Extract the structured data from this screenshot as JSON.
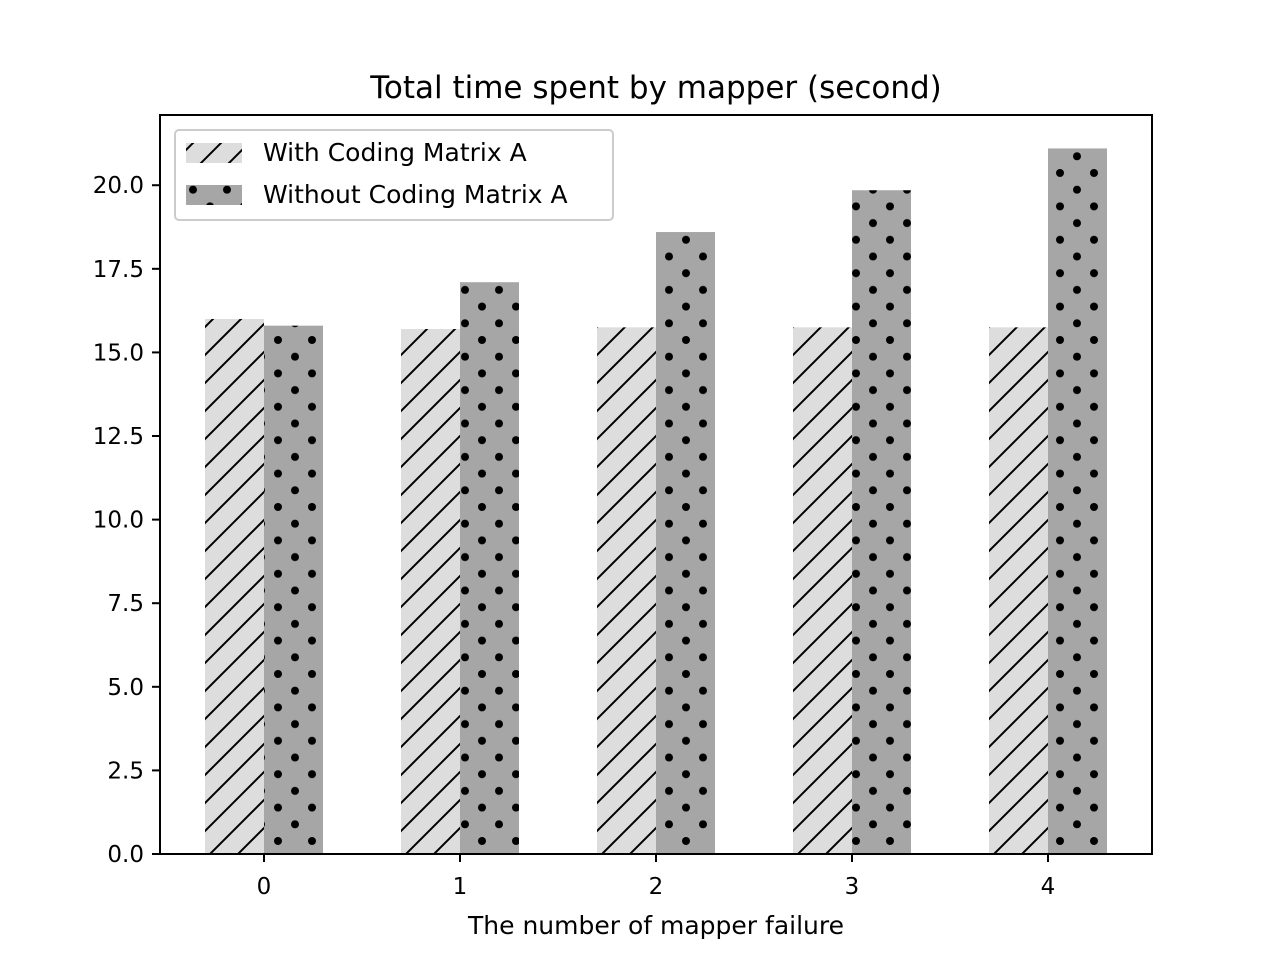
{
  "chart_data": {
    "type": "bar",
    "title": "Total time spent by mapper (second)",
    "xlabel": "The number of mapper failure",
    "ylabel": "",
    "categories": [
      "0",
      "1",
      "2",
      "3",
      "4"
    ],
    "ylim": [
      0,
      22.1
    ],
    "yticks": [
      "0.0",
      "2.5",
      "5.0",
      "7.5",
      "10.0",
      "12.5",
      "15.0",
      "17.5",
      "20.0"
    ],
    "legend_position": "upper-left",
    "grid": false,
    "series": [
      {
        "name": "With Coding Matrix A",
        "values": [
          16.0,
          15.7,
          15.75,
          15.75,
          15.75
        ],
        "color": "#dddddd",
        "pattern": "diagonal-hatch"
      },
      {
        "name": "Without Coding Matrix A",
        "values": [
          15.8,
          17.1,
          18.6,
          19.85,
          21.1
        ],
        "color": "#a6a6a6",
        "pattern": "dots"
      }
    ]
  }
}
